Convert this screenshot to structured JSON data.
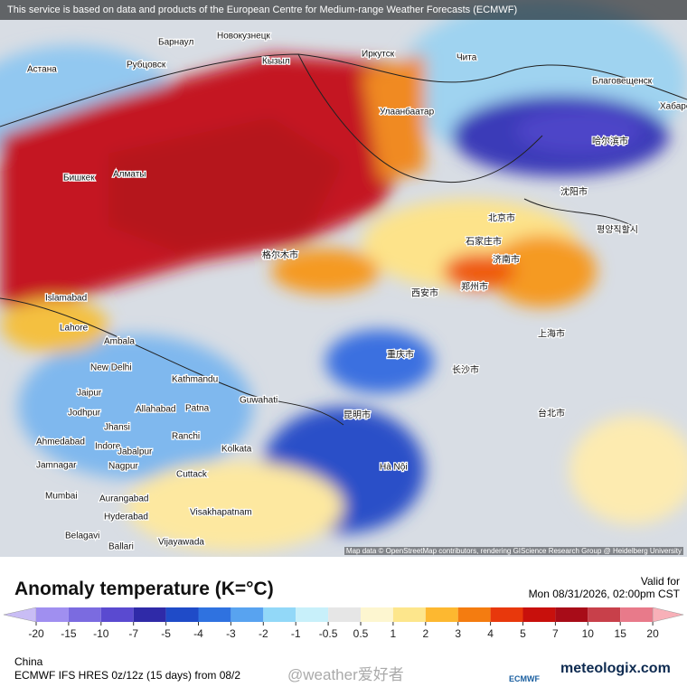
{
  "header": {
    "notice": "This service is based on data and products of the European Centre for Medium-range Weather Forecasts (ECMWF)"
  },
  "map": {
    "attribution": "Map data © OpenStreetMap contributors, rendering GIScience Research Group @ Heidelberg University",
    "labels": [
      "Астана",
      "Барнаул",
      "Новокузнецк",
      "Рубцовск",
      "Кызыл",
      "Иркутск",
      "Чита",
      "Улаанбаатар",
      "Благовещенск",
      "Хабаровск",
      "Бишкек",
      "Алматы",
      "Islamabad",
      "Lahore",
      "Ambala",
      "New Delhi",
      "Kathmandu",
      "Guwahati",
      "Jaipur",
      "Jodhpur",
      "Allahabad",
      "Patna",
      "Jhansi",
      "Ranchi",
      "Ahmedabad",
      "Indore",
      "Kolkata",
      "Jabalpur",
      "Jamnagar",
      "Nagpur",
      "Cuttack",
      "Mumbai",
      "Aurangabad",
      "Hyderabad",
      "Visakhapatnam",
      "Belagavi",
      "Ballari",
      "Vijayawada",
      "Hà Nội",
      "哈尔滨市",
      "沈阳市",
      "北京市",
      "石家庄市",
      "济南市",
      "郑州市",
      "西安市",
      "重庆市",
      "长沙市",
      "昆明市",
      "上海市",
      "台北市",
      "格尔木市",
      "평양직할시"
    ]
  },
  "legend": {
    "title": "Anomaly temperature (K=°C)",
    "valid_label": "Valid for",
    "valid_time": "Mon 08/31/2026, 02:00pm CST",
    "ticks": [
      -20,
      -15,
      -10,
      -7,
      -5,
      -4,
      -3,
      -2,
      -1,
      -0.5,
      0.5,
      1,
      2,
      3,
      4,
      5,
      7,
      10,
      15,
      20
    ],
    "colors": [
      "#c9bdf5",
      "#a08ff0",
      "#7b6be0",
      "#5a4ad0",
      "#2f2aa8",
      "#1f4bc8",
      "#2f72e0",
      "#58a3f0",
      "#92d8f8",
      "#c8f0fa",
      "#e6e6e6",
      "#fdf6d0",
      "#fde68c",
      "#fdb830",
      "#f47c10",
      "#e8380c",
      "#c8100c",
      "#a80c18",
      "#c8404a",
      "#e87a8a",
      "#f8b0b8"
    ]
  },
  "footer": {
    "region": "China",
    "model": "ECMWF IFS HRES 0z/12z (15 days) from 08/2",
    "watermark": "@weather爱好者",
    "ecmwf": "ECMWF",
    "brand": "meteologix.com"
  }
}
